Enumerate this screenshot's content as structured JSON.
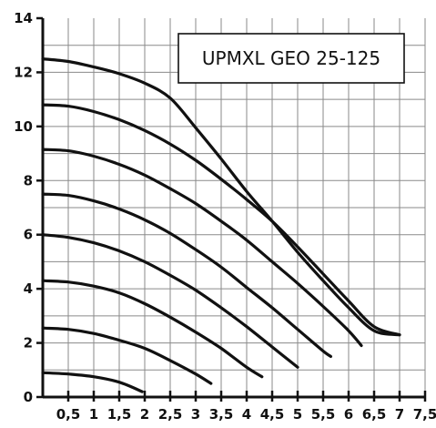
{
  "chart_data": {
    "type": "line",
    "title": "UPMXL GEO 25-125",
    "xlabel": "",
    "ylabel": "",
    "xlim": [
      0,
      7.5
    ],
    "ylim": [
      0,
      14
    ],
    "x_ticks": [
      0.5,
      1,
      1.5,
      2,
      2.5,
      3,
      3.5,
      4,
      4.5,
      5,
      5.5,
      6,
      6.5,
      7,
      7.5
    ],
    "x_tick_labels": [
      "0,5",
      "1",
      "1,5",
      "2",
      "2,5",
      "3",
      "3,5",
      "4",
      "4,5",
      "5",
      "5,5",
      "6",
      "6,5",
      "7",
      "7,5"
    ],
    "y_ticks": [
      0,
      2,
      4,
      6,
      8,
      10,
      12,
      14
    ],
    "y_tick_labels": [
      "0",
      "2",
      "4",
      "6",
      "8",
      "10",
      "12",
      "14"
    ],
    "grid": true,
    "series": [
      {
        "x": [
          0,
          0.5,
          1.0,
          1.5,
          1.95
        ],
        "y": [
          0.9,
          0.85,
          0.75,
          0.55,
          0.2
        ]
      },
      {
        "x": [
          0,
          0.5,
          1.0,
          1.5,
          2.0,
          2.5,
          3.0,
          3.3
        ],
        "y": [
          2.55,
          2.5,
          2.35,
          2.1,
          1.8,
          1.35,
          0.85,
          0.5
        ]
      },
      {
        "x": [
          0,
          0.5,
          1.0,
          1.5,
          2.0,
          2.5,
          3.0,
          3.5,
          4.0,
          4.3
        ],
        "y": [
          4.3,
          4.25,
          4.1,
          3.85,
          3.45,
          2.95,
          2.4,
          1.8,
          1.1,
          0.75
        ]
      },
      {
        "x": [
          0,
          0.5,
          1.0,
          1.5,
          2.0,
          2.5,
          3.0,
          3.5,
          4.0,
          4.5,
          5.0
        ],
        "y": [
          6.0,
          5.9,
          5.7,
          5.4,
          5.0,
          4.5,
          3.95,
          3.3,
          2.6,
          1.85,
          1.1
        ]
      },
      {
        "x": [
          0,
          0.5,
          1.0,
          1.5,
          2.0,
          2.5,
          3.0,
          3.5,
          4.0,
          4.5,
          5.0,
          5.5,
          5.65
        ],
        "y": [
          7.5,
          7.45,
          7.25,
          6.95,
          6.55,
          6.05,
          5.45,
          4.8,
          4.05,
          3.3,
          2.5,
          1.7,
          1.5
        ]
      },
      {
        "x": [
          0,
          0.5,
          1.0,
          1.5,
          2.0,
          2.5,
          3.0,
          3.5,
          4.0,
          4.5,
          5.0,
          5.5,
          6.0,
          6.25
        ],
        "y": [
          9.15,
          9.1,
          8.9,
          8.6,
          8.2,
          7.7,
          7.15,
          6.5,
          5.8,
          5.0,
          4.2,
          3.35,
          2.45,
          1.9
        ]
      },
      {
        "x": [
          0,
          0.5,
          1.0,
          1.5,
          2.0,
          2.5,
          3.0,
          3.5,
          4.0,
          4.5,
          5.0,
          5.5,
          6.0,
          6.5,
          7.0
        ],
        "y": [
          12.5,
          12.4,
          12.2,
          11.95,
          11.6,
          11.05,
          9.95,
          8.8,
          7.6,
          6.5,
          5.35,
          4.3,
          3.3,
          2.45,
          2.3
        ]
      },
      {
        "x": [
          0,
          0.5,
          1.0,
          1.5,
          2.0,
          2.5,
          3.0,
          3.5,
          4.0,
          4.5,
          5.0,
          5.5,
          6.0,
          6.5,
          7.0
        ],
        "y": [
          10.8,
          10.75,
          10.55,
          10.25,
          9.85,
          9.35,
          8.75,
          8.05,
          7.3,
          6.5,
          5.55,
          4.55,
          3.55,
          2.6,
          2.3
        ]
      }
    ]
  }
}
